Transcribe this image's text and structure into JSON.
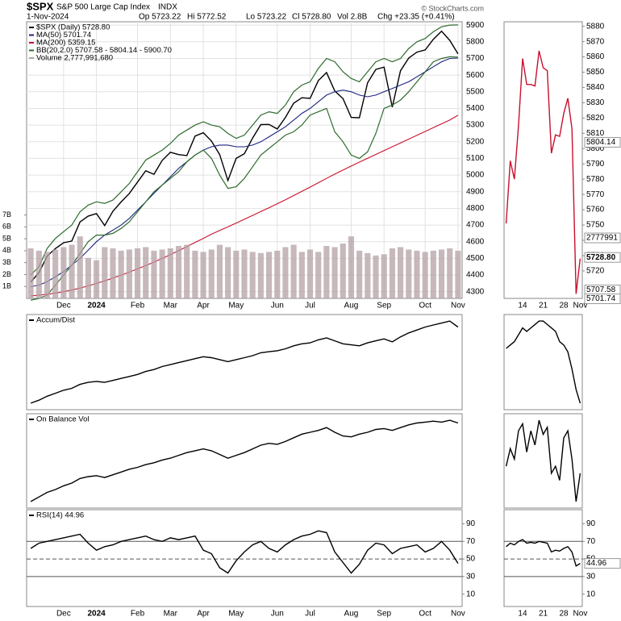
{
  "header": {
    "symbol": "$SPX",
    "name": "S&P 500 Large Cap Index",
    "exchange": "INDX",
    "date": "1-Nov-2024",
    "open": "Op 5723.22",
    "high": "Hi 5772.52",
    "low": "Lo 5723.22",
    "close": "Cl 5728.80",
    "volume": "Vol 2.8B",
    "change": "Chg +23.35 (+0.41%)",
    "credit": "© StockCharts.com"
  },
  "chart_data": [
    {
      "type": "line",
      "categories": [
        null,
        null,
        null,
        null,
        "Dec",
        null,
        null,
        null,
        "2024",
        null,
        null,
        null,
        null,
        "Feb",
        null,
        null,
        null,
        "Mar",
        null,
        null,
        null,
        "Apr",
        null,
        null,
        null,
        "May",
        null,
        null,
        null,
        null,
        "Jun",
        null,
        null,
        null,
        "Jul",
        null,
        null,
        null,
        null,
        "Aug",
        null,
        null,
        null,
        "Sep",
        null,
        null,
        null,
        null,
        "Oct",
        null,
        null,
        null,
        "Nov"
      ],
      "ylim": [
        4260,
        5920
      ],
      "yticks": [
        4300,
        4400,
        4500,
        4600,
        4700,
        4800,
        4900,
        5000,
        5100,
        5200,
        5300,
        5400,
        5500,
        5600,
        5700,
        5800,
        5900
      ],
      "y2lim": [
        0,
        23.2
      ],
      "y2ticks": [
        {
          "value": 1,
          "label": "1B"
        },
        {
          "value": 2,
          "label": "2B"
        },
        {
          "value": 3,
          "label": "3B"
        },
        {
          "value": 4,
          "label": "4B"
        },
        {
          "value": 5,
          "label": "5B"
        },
        {
          "value": 6,
          "label": "6B"
        },
        {
          "value": 7,
          "label": "7B"
        }
      ],
      "grid": true,
      "series": [
        {
          "name": "$SPX (Daily) 5728.80",
          "color": "#000000",
          "values": [
            4358,
            4415,
            4514,
            4559,
            4594,
            4604,
            4719,
            4754,
            4769,
            4697,
            4783,
            4839,
            4890,
            4958,
            5026,
            5005,
            5088,
            5137,
            5123,
            5117,
            5234,
            5254,
            5204,
            5123,
            4967,
            5100,
            5128,
            5222,
            5303,
            5304,
            5277,
            5346,
            5431,
            5464,
            5460,
            5567,
            5615,
            5505,
            5459,
            5346,
            5344,
            5554,
            5634,
            5648,
            5408,
            5626,
            5702,
            5738,
            5751,
            5815,
            5864,
            5808,
            5728
          ]
        },
        {
          "name": "MA(50) 5701.74",
          "color": "#1a237e",
          "values": [
            4330,
            4340,
            4360,
            4390,
            4420,
            4460,
            4500,
            4550,
            4600,
            4640,
            4670,
            4700,
            4740,
            4790,
            4840,
            4890,
            4940,
            4990,
            5040,
            5080,
            5120,
            5150,
            5170,
            5180,
            5180,
            5170,
            5170,
            5180,
            5200,
            5230,
            5260,
            5290,
            5330,
            5370,
            5400,
            5440,
            5480,
            5500,
            5510,
            5500,
            5480,
            5470,
            5480,
            5500,
            5520,
            5540,
            5560,
            5590,
            5620,
            5650,
            5680,
            5700,
            5702
          ]
        },
        {
          "name": "MA(200) 5359.15",
          "color": "#c8102e",
          "values": [
            4275,
            4280,
            4285,
            4292,
            4300,
            4310,
            4322,
            4335,
            4350,
            4365,
            4382,
            4400,
            4418,
            4437,
            4457,
            4478,
            4500,
            4523,
            4547,
            4571,
            4596,
            4620,
            4645,
            4668,
            4690,
            4712,
            4735,
            4758,
            4781,
            4804,
            4828,
            4852,
            4877,
            4902,
            4928,
            4954,
            4980,
            5006,
            5030,
            5054,
            5078,
            5101,
            5124,
            5147,
            5170,
            5193,
            5216,
            5239,
            5262,
            5285,
            5308,
            5330,
            5359
          ]
        },
        {
          "name": "BB(20,2.0) 5707.58 - 5804.14 - 5900.70",
          "color": "#2e6b2e",
          "upper": [
            4400,
            4450,
            4560,
            4620,
            4660,
            4700,
            4780,
            4820,
            4840,
            4830,
            4850,
            4900,
            4950,
            5020,
            5090,
            5120,
            5150,
            5190,
            5240,
            5270,
            5300,
            5320,
            5300,
            5290,
            5250,
            5220,
            5240,
            5300,
            5360,
            5380,
            5370,
            5420,
            5500,
            5540,
            5560,
            5640,
            5700,
            5680,
            5620,
            5580,
            5560,
            5620,
            5680,
            5700,
            5680,
            5700,
            5760,
            5800,
            5820,
            5860,
            5890,
            5900,
            5901
          ],
          "lower": [
            4250,
            4260,
            4280,
            4340,
            4400,
            4460,
            4530,
            4600,
            4640,
            4640,
            4650,
            4680,
            4720,
            4780,
            4840,
            4900,
            4940,
            4980,
            5020,
            5080,
            5120,
            5150,
            5100,
            5000,
            4920,
            4930,
            4980,
            5050,
            5120,
            5160,
            5200,
            5240,
            5260,
            5300,
            5360,
            5380,
            5400,
            5260,
            5200,
            5120,
            5100,
            5140,
            5250,
            5400,
            5420,
            5450,
            5500,
            5560,
            5620,
            5680,
            5700,
            5710,
            5708
          ]
        },
        {
          "name": "Volume 2,777,991,680",
          "color": "#b4a0a4",
          "axis": "y2",
          "values": [
            4.2,
            4.0,
            3.9,
            4.1,
            4.3,
            4.5,
            5.2,
            3.4,
            3.2,
            4.3,
            4.2,
            4.0,
            4.1,
            4.2,
            4.3,
            4.0,
            4.1,
            4.2,
            4.4,
            4.5,
            4.0,
            3.9,
            4.1,
            4.5,
            4.3,
            4.0,
            4.1,
            3.9,
            3.8,
            3.9,
            4.0,
            4.3,
            4.5,
            3.9,
            4.1,
            3.9,
            4.4,
            4.3,
            4.6,
            5.2,
            4.0,
            3.8,
            3.6,
            3.7,
            4.2,
            4.3,
            4.1,
            4.0,
            3.9,
            4.0,
            4.1,
            4.2,
            4.0
          ]
        }
      ]
    },
    {
      "type": "line",
      "series": [
        {
          "name": "Accum/Dist",
          "color": "#000000",
          "values": [
            5,
            8,
            12,
            15,
            18,
            20,
            24,
            26,
            27,
            26,
            28,
            30,
            32,
            34,
            37,
            39,
            42,
            44,
            46,
            48,
            50,
            52,
            51,
            49,
            47,
            49,
            51,
            53,
            56,
            57,
            58,
            60,
            63,
            65,
            66,
            69,
            71,
            68,
            65,
            64,
            63,
            66,
            68,
            70,
            67,
            72,
            76,
            79,
            82,
            84,
            86,
            88,
            82
          ]
        }
      ]
    },
    {
      "type": "line",
      "series": [
        {
          "name": "On Balance Vol",
          "color": "#000000",
          "values": [
            5,
            10,
            15,
            18,
            22,
            25,
            30,
            32,
            33,
            31,
            34,
            37,
            40,
            42,
            45,
            47,
            50,
            52,
            55,
            58,
            60,
            62,
            60,
            56,
            52,
            55,
            58,
            62,
            66,
            68,
            67,
            70,
            74,
            78,
            80,
            82,
            85,
            80,
            76,
            75,
            78,
            80,
            83,
            84,
            82,
            85,
            88,
            90,
            91,
            92,
            91,
            93,
            90
          ]
        }
      ]
    },
    {
      "type": "line",
      "categories": [
        null,
        null,
        null,
        null,
        "Dec",
        null,
        null,
        null,
        "2024",
        null,
        null,
        null,
        null,
        "Feb",
        null,
        null,
        null,
        "Mar",
        null,
        null,
        null,
        "Apr",
        null,
        null,
        null,
        "May",
        null,
        null,
        null,
        null,
        "Jun",
        null,
        null,
        null,
        "Jul",
        null,
        null,
        null,
        null,
        "Aug",
        null,
        null,
        null,
        "Sep",
        null,
        null,
        null,
        null,
        "Oct",
        null,
        null,
        null,
        "Nov"
      ],
      "ylim": [
        -4,
        106
      ],
      "yticks": [
        10,
        30,
        50,
        70,
        90
      ],
      "hlines": [
        70,
        50,
        30
      ],
      "series": [
        {
          "name": "RSI(14) 44.96",
          "color": "#000000",
          "values": [
            62,
            68,
            70,
            72,
            74,
            76,
            78,
            68,
            60,
            64,
            66,
            70,
            72,
            74,
            76,
            72,
            70,
            74,
            72,
            74,
            76,
            60,
            56,
            40,
            34,
            48,
            58,
            66,
            70,
            62,
            58,
            66,
            72,
            76,
            78,
            82,
            80,
            58,
            46,
            34,
            44,
            60,
            68,
            66,
            56,
            62,
            64,
            66,
            58,
            62,
            70,
            60,
            44.96
          ]
        }
      ]
    },
    {
      "type": "line",
      "categories": [
        null,
        null,
        null,
        null,
        "14",
        null,
        null,
        null,
        null,
        "21",
        null,
        null,
        null,
        null,
        "28",
        null,
        null,
        null,
        "Nov"
      ],
      "ylim": [
        5702,
        5883
      ],
      "yticks": [
        5720,
        5730,
        5740,
        5750,
        5760,
        5770,
        5780,
        5790,
        5800,
        5810,
        5820,
        5830,
        5840,
        5850,
        5860,
        5870,
        5880
      ],
      "labels": [
        5804.14,
        {
          "value": 5728.8,
          "label": "5728.80"
        },
        5707.58,
        5701.74
      ],
      "volume_label": 2777991,
      "series": [
        {
          "color": "#c8102e",
          "values": [
            5751,
            5792,
            5780,
            5815,
            5859,
            5842,
            5842,
            5841,
            5864,
            5853,
            5851,
            5797,
            5809,
            5808,
            5823,
            5833,
            5813,
            5705,
            5728
          ]
        }
      ]
    },
    {
      "type": "line",
      "series": [
        {
          "color": "#000000",
          "values": [
            88,
            89,
            90,
            92,
            94,
            93,
            94,
            95,
            96,
            96,
            95,
            94,
            93,
            90,
            89,
            87,
            82,
            76,
            72
          ]
        }
      ]
    },
    {
      "type": "line",
      "series": [
        {
          "color": "#000000",
          "values": [
            80,
            85,
            82,
            90,
            92,
            84,
            90,
            86,
            93,
            89,
            91,
            78,
            80,
            76,
            88,
            90,
            82,
            70,
            78
          ]
        }
      ]
    },
    {
      "type": "line",
      "categories": [
        null,
        null,
        null,
        null,
        "14",
        null,
        null,
        null,
        null,
        "21",
        null,
        null,
        null,
        null,
        "28",
        null,
        null,
        null,
        "Nov"
      ],
      "ylim": [
        -4,
        106
      ],
      "yticks": [
        10,
        30,
        50,
        70,
        90
      ],
      "hlines": [
        70,
        50,
        30
      ],
      "labels": [
        44.96
      ],
      "series": [
        {
          "color": "#000000",
          "values": [
            64,
            68,
            66,
            70,
            72,
            68,
            69,
            68,
            70,
            69,
            68,
            58,
            60,
            59,
            62,
            64,
            58,
            42,
            44.96
          ]
        }
      ]
    }
  ]
}
